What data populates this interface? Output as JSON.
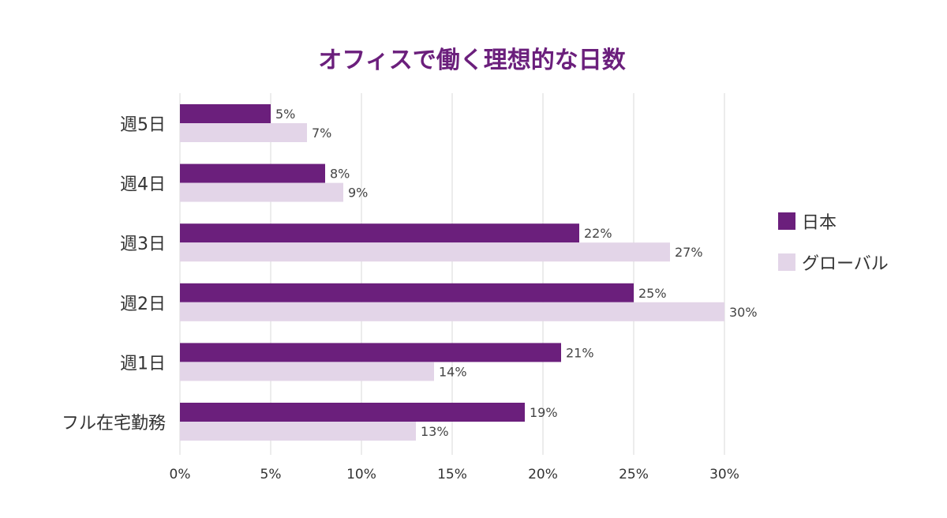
{
  "chart_data": {
    "type": "bar",
    "orientation": "horizontal",
    "title": "オフィスで働く理想的な日数",
    "xlabel": "",
    "ylabel": "",
    "categories": [
      "週5日",
      "週4日",
      "週3日",
      "週2日",
      "週1日",
      "フル在宅勤務"
    ],
    "series": [
      {
        "name": "日本",
        "color": "#6b1f7c",
        "values": [
          5,
          8,
          22,
          25,
          21,
          19
        ]
      },
      {
        "name": "グローバル",
        "color": "#e3d5e8",
        "values": [
          7,
          9,
          27,
          30,
          14,
          13
        ]
      }
    ],
    "value_suffix": "%",
    "xlim": [
      0,
      30
    ],
    "xticks": [
      "0%",
      "5%",
      "10%",
      "15%",
      "20%",
      "25%",
      "30%"
    ],
    "grid": "vertical",
    "legend_position": "right"
  }
}
